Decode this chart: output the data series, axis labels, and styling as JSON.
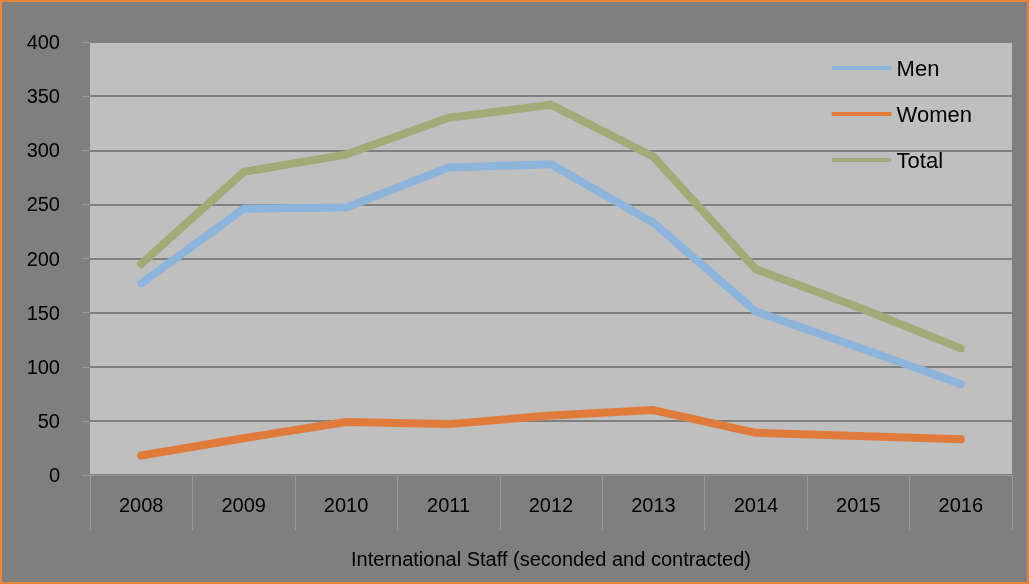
{
  "chart_data": {
    "type": "line",
    "xlabel": "International Staff (seconded and contracted)",
    "categories": [
      "2008",
      "2009",
      "2010",
      "2011",
      "2012",
      "2013",
      "2014",
      "2015",
      "2016"
    ],
    "series": [
      {
        "name": "Men",
        "color": "#8db4db",
        "values": [
          177,
          246,
          247,
          284,
          287,
          233,
          151,
          118,
          84
        ]
      },
      {
        "name": "Women",
        "color": "#e07b3c",
        "values": [
          18,
          34,
          49,
          47,
          55,
          60,
          39,
          36,
          33
        ]
      },
      {
        "name": "Total",
        "color": "#a0ab78",
        "values": [
          195,
          280,
          296,
          330,
          342,
          294,
          190,
          155,
          117
        ]
      }
    ],
    "ylim": [
      0,
      400
    ],
    "yticks": [
      0,
      50,
      100,
      150,
      200,
      250,
      300,
      350,
      400
    ],
    "grid": "y",
    "legend": "top right",
    "line_style": "solid"
  }
}
